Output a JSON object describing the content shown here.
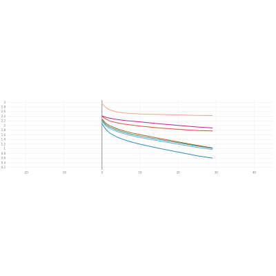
{
  "chart_data": {
    "type": "line",
    "title": "",
    "xlabel": "",
    "ylabel": "",
    "xlim": [
      -25,
      45
    ],
    "ylim": [
      0.1,
      3.1
    ],
    "grid": true,
    "legend": "none",
    "x_ticks": [
      -20,
      -10,
      0,
      10,
      20,
      30,
      40
    ],
    "x_tick_labels": [
      "-20",
      "-10",
      "0",
      "10",
      "20",
      "30",
      "40"
    ],
    "y_ticks": [
      0.2,
      0.4,
      0.6,
      0.8,
      1.0,
      1.2,
      1.4,
      1.6,
      1.8,
      2.0,
      2.2,
      2.4,
      2.6,
      2.8,
      3.0
    ],
    "y_tick_labels": [
      "0.2",
      "0.4",
      "0.6",
      "0.8",
      "1",
      "1.2",
      "1.4",
      "1.6",
      "1.8",
      "2",
      "2.2",
      "2.4",
      "2.6",
      "2.8",
      "3"
    ],
    "series": [
      {
        "color": "#f4a582",
        "x": [
          0,
          1,
          2,
          4,
          6,
          8,
          10,
          15,
          20,
          25,
          29
        ],
        "y": [
          2.95,
          2.78,
          2.68,
          2.58,
          2.54,
          2.52,
          2.5,
          2.48,
          2.46,
          2.44,
          2.43
        ]
      },
      {
        "color": "#c51b8a",
        "x": [
          0,
          1,
          2,
          4,
          6,
          8,
          10,
          15,
          20,
          25,
          29
        ],
        "y": [
          2.42,
          2.36,
          2.32,
          2.26,
          2.22,
          2.19,
          2.16,
          2.08,
          2.01,
          1.94,
          1.9
        ]
      },
      {
        "color": "#e34a33",
        "x": [
          0,
          1,
          2,
          4,
          6,
          8,
          10,
          15,
          20,
          25,
          29
        ],
        "y": [
          2.4,
          2.28,
          2.2,
          2.12,
          2.06,
          2.02,
          1.98,
          1.9,
          1.84,
          1.79,
          1.77
        ]
      },
      {
        "color": "#a6611a",
        "x": [
          0,
          1,
          2,
          4,
          6,
          8,
          10,
          15,
          20,
          25,
          29
        ],
        "y": [
          2.28,
          2.1,
          2.0,
          1.86,
          1.76,
          1.68,
          1.61,
          1.45,
          1.3,
          1.15,
          1.04
        ]
      },
      {
        "color": "#35978f",
        "x": [
          0,
          1,
          2,
          4,
          6,
          8,
          10,
          15,
          20,
          25,
          29
        ],
        "y": [
          2.22,
          2.04,
          1.94,
          1.8,
          1.7,
          1.62,
          1.55,
          1.4,
          1.26,
          1.12,
          1.02
        ]
      },
      {
        "color": "#6baed6",
        "x": [
          0,
          1,
          2,
          4,
          6,
          8,
          10,
          15,
          20,
          25,
          29
        ],
        "y": [
          2.18,
          1.98,
          1.88,
          1.74,
          1.64,
          1.56,
          1.49,
          1.34,
          1.2,
          1.06,
          0.97
        ]
      },
      {
        "color": "#2b8cbe",
        "x": [
          0,
          1,
          2,
          4,
          6,
          8,
          10,
          15,
          20,
          25,
          29
        ],
        "y": [
          2.08,
          1.84,
          1.68,
          1.5,
          1.38,
          1.28,
          1.2,
          1.02,
          0.86,
          0.7,
          0.6
        ]
      }
    ]
  }
}
